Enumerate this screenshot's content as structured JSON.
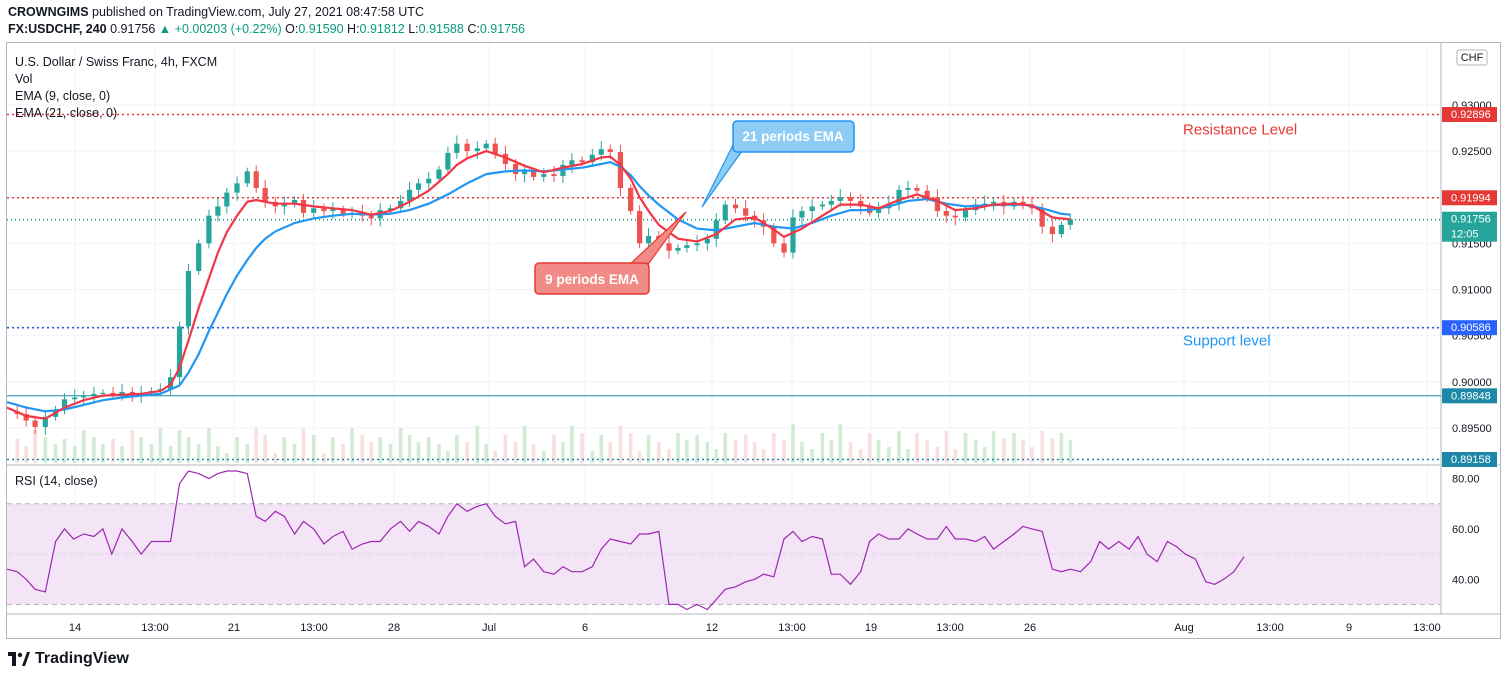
{
  "header": {
    "publisher": "CROWNGIMS",
    "published_text": "published on TradingView.com, July 27, 2021 08:47:58 UTC",
    "symbol": "FX:USDCHF, 240",
    "last": "0.91756",
    "change": "+0.00203 (+0.22%)",
    "o_label": "O:",
    "o": "0.91590",
    "h_label": "H:",
    "h": "0.91812",
    "l_label": "L:",
    "l": "0.91588",
    "c_label": "C:",
    "c": "0.91756"
  },
  "legend": {
    "title": "U.S. Dollar / Swiss Franc, 4h, FXCM",
    "vol": "Vol",
    "ema9": "EMA (9, close, 0)",
    "ema21": "EMA (21, close, 0)"
  },
  "rsi_label": "RSI (14, close)",
  "currency_badge": "CHF",
  "current_time_left": "12:05",
  "annotations": {
    "resistance": "Resistance Level",
    "support": "Support level",
    "ema21": "21 periods EMA",
    "ema9": "9 periods EMA"
  },
  "brand": "TradingView",
  "colors": {
    "up": "#26a69a",
    "down": "#ef5350",
    "ema9": "#f23645",
    "ema21": "#2196f3",
    "rsi": "#9c27b0",
    "rsi_band": "#f3e5f5",
    "resistance": "#e53935",
    "support": "#1e5bd6",
    "hline": "#1e88a8",
    "accent_teal": "#089981"
  },
  "chart_data": {
    "type": "candlestick",
    "y_ticks": [
      "0.93000",
      "0.92500",
      "0.92000",
      "0.91500",
      "0.91000",
      "0.90500",
      "0.90000",
      "0.89500"
    ],
    "y_tick_values": [
      0.93,
      0.925,
      0.92,
      0.915,
      0.91,
      0.905,
      0.9,
      0.895
    ],
    "y_range": [
      0.8912,
      0.9366
    ],
    "x_ticks": [
      "14",
      "13:00",
      "21",
      "13:00",
      "28",
      "Jul",
      "6",
      "12",
      "13:00",
      "19",
      "13:00",
      "26",
      "Aug",
      "13:00",
      "9",
      "13:00"
    ],
    "levels": [
      {
        "name": "resistance-top",
        "value": 0.92896,
        "label": "0.92896",
        "style": "dotted",
        "color": "#e53935"
      },
      {
        "name": "resistance",
        "value": 0.91994,
        "label": "0.91994",
        "style": "dotted",
        "color": "#e53935"
      },
      {
        "name": "current",
        "value": 0.91756,
        "label": "0.91756",
        "style": "dotted",
        "color": "#089981"
      },
      {
        "name": "support",
        "value": 0.90586,
        "label": "0.90586",
        "style": "dotted",
        "color": "#1e5bd6"
      },
      {
        "name": "hline",
        "value": 0.89848,
        "label": "0.89848",
        "style": "solid",
        "color": "#1e88a8"
      },
      {
        "name": "lower",
        "value": 0.89158,
        "label": "0.89158",
        "style": "dotted",
        "color": "#1e88a8"
      }
    ],
    "close_path": [
      [
        0,
        0.8968
      ],
      [
        8,
        0.8965
      ],
      [
        15,
        0.8958
      ],
      [
        22,
        0.8951
      ],
      [
        30,
        0.8962
      ],
      [
        38,
        0.897
      ],
      [
        45,
        0.8981
      ],
      [
        53,
        0.8983
      ],
      [
        60,
        0.8985
      ],
      [
        68,
        0.8987
      ],
      [
        75,
        0.8988
      ],
      [
        83,
        0.8986
      ],
      [
        90,
        0.8989
      ],
      [
        98,
        0.8986
      ],
      [
        105,
        0.8988
      ],
      [
        113,
        0.899
      ],
      [
        120,
        0.8992
      ],
      [
        128,
        0.9005
      ],
      [
        135,
        0.906
      ],
      [
        142,
        0.912
      ],
      [
        150,
        0.915
      ],
      [
        158,
        0.918
      ],
      [
        165,
        0.919
      ],
      [
        172,
        0.9205
      ],
      [
        180,
        0.9215
      ],
      [
        188,
        0.9228
      ],
      [
        195,
        0.921
      ],
      [
        202,
        0.9195
      ],
      [
        210,
        0.919
      ],
      [
        217,
        0.9193
      ],
      [
        225,
        0.9197
      ],
      [
        232,
        0.9183
      ],
      [
        240,
        0.9188
      ],
      [
        248,
        0.9185
      ],
      [
        255,
        0.9187
      ],
      [
        263,
        0.9182
      ],
      [
        270,
        0.9183
      ],
      [
        278,
        0.918
      ],
      [
        285,
        0.9177
      ],
      [
        292,
        0.9186
      ],
      [
        300,
        0.9188
      ],
      [
        308,
        0.9196
      ],
      [
        315,
        0.9208
      ],
      [
        322,
        0.9215
      ],
      [
        330,
        0.922
      ],
      [
        338,
        0.923
      ],
      [
        345,
        0.9248
      ],
      [
        352,
        0.9258
      ],
      [
        360,
        0.925
      ],
      [
        368,
        0.9253
      ],
      [
        375,
        0.9258
      ],
      [
        382,
        0.9247
      ],
      [
        390,
        0.9236
      ],
      [
        398,
        0.9225
      ],
      [
        405,
        0.9228
      ],
      [
        412,
        0.9222
      ],
      [
        420,
        0.9225
      ],
      [
        428,
        0.9223
      ],
      [
        435,
        0.9235
      ],
      [
        442,
        0.924
      ],
      [
        450,
        0.9238
      ],
      [
        458,
        0.9246
      ],
      [
        465,
        0.9252
      ],
      [
        472,
        0.9249
      ],
      [
        480,
        0.921
      ],
      [
        488,
        0.9185
      ],
      [
        495,
        0.915
      ],
      [
        502,
        0.9158
      ],
      [
        510,
        0.915
      ],
      [
        518,
        0.9142
      ],
      [
        525,
        0.9145
      ],
      [
        532,
        0.9148
      ],
      [
        540,
        0.915
      ],
      [
        548,
        0.9155
      ],
      [
        555,
        0.9175
      ],
      [
        562,
        0.9192
      ],
      [
        570,
        0.9188
      ],
      [
        578,
        0.918
      ],
      [
        585,
        0.9175
      ],
      [
        592,
        0.9168
      ],
      [
        600,
        0.915
      ],
      [
        608,
        0.914
      ],
      [
        615,
        0.9178
      ],
      [
        622,
        0.9185
      ],
      [
        630,
        0.919
      ],
      [
        638,
        0.9192
      ],
      [
        645,
        0.9196
      ],
      [
        652,
        0.92
      ],
      [
        660,
        0.9196
      ],
      [
        668,
        0.919
      ],
      [
        675,
        0.9183
      ],
      [
        682,
        0.9188
      ],
      [
        690,
        0.9193
      ],
      [
        698,
        0.9208
      ],
      [
        705,
        0.921
      ],
      [
        712,
        0.9207
      ],
      [
        720,
        0.92
      ],
      [
        728,
        0.9185
      ],
      [
        735,
        0.918
      ],
      [
        742,
        0.9178
      ],
      [
        750,
        0.9186
      ],
      [
        758,
        0.9192
      ],
      [
        765,
        0.9193
      ],
      [
        772,
        0.9195
      ],
      [
        780,
        0.919
      ],
      [
        788,
        0.9195
      ],
      [
        795,
        0.9192
      ],
      [
        802,
        0.9188
      ],
      [
        810,
        0.9168
      ],
      [
        818,
        0.916
      ],
      [
        825,
        0.917
      ],
      [
        832,
        0.9176
      ]
    ],
    "ema9_path": [
      [
        0,
        0.8972
      ],
      [
        15,
        0.8963
      ],
      [
        30,
        0.896
      ],
      [
        45,
        0.8972
      ],
      [
        60,
        0.898
      ],
      [
        75,
        0.8985
      ],
      [
        90,
        0.8986
      ],
      [
        105,
        0.8987
      ],
      [
        120,
        0.899
      ],
      [
        128,
        0.8997
      ],
      [
        135,
        0.9015
      ],
      [
        142,
        0.9045
      ],
      [
        150,
        0.908
      ],
      [
        158,
        0.9112
      ],
      [
        165,
        0.914
      ],
      [
        172,
        0.9162
      ],
      [
        180,
        0.918
      ],
      [
        188,
        0.9195
      ],
      [
        195,
        0.9197
      ],
      [
        202,
        0.9195
      ],
      [
        210,
        0.9193
      ],
      [
        225,
        0.9193
      ],
      [
        240,
        0.919
      ],
      [
        255,
        0.9188
      ],
      [
        270,
        0.9186
      ],
      [
        285,
        0.9181
      ],
      [
        300,
        0.9185
      ],
      [
        315,
        0.9195
      ],
      [
        330,
        0.9207
      ],
      [
        345,
        0.9225
      ],
      [
        352,
        0.9235
      ],
      [
        360,
        0.9242
      ],
      [
        375,
        0.925
      ],
      [
        390,
        0.9243
      ],
      [
        405,
        0.9234
      ],
      [
        420,
        0.9227
      ],
      [
        435,
        0.9232
      ],
      [
        450,
        0.9236
      ],
      [
        465,
        0.9243
      ],
      [
        472,
        0.9244
      ],
      [
        480,
        0.9235
      ],
      [
        488,
        0.922
      ],
      [
        495,
        0.92
      ],
      [
        502,
        0.9185
      ],
      [
        510,
        0.917
      ],
      [
        525,
        0.9155
      ],
      [
        540,
        0.9152
      ],
      [
        555,
        0.916
      ],
      [
        570,
        0.9176
      ],
      [
        585,
        0.9178
      ],
      [
        600,
        0.9165
      ],
      [
        608,
        0.9157
      ],
      [
        622,
        0.9166
      ],
      [
        638,
        0.918
      ],
      [
        652,
        0.9192
      ],
      [
        668,
        0.9192
      ],
      [
        682,
        0.9188
      ],
      [
        698,
        0.9197
      ],
      [
        712,
        0.9203
      ],
      [
        728,
        0.9196
      ],
      [
        742,
        0.9186
      ],
      [
        758,
        0.9188
      ],
      [
        772,
        0.9192
      ],
      [
        788,
        0.9193
      ],
      [
        802,
        0.9191
      ],
      [
        818,
        0.9178
      ],
      [
        832,
        0.9176
      ]
    ],
    "ema21_path": [
      [
        0,
        0.8978
      ],
      [
        15,
        0.8972
      ],
      [
        30,
        0.8968
      ],
      [
        45,
        0.897
      ],
      [
        60,
        0.8975
      ],
      [
        75,
        0.898
      ],
      [
        90,
        0.8983
      ],
      [
        105,
        0.8985
      ],
      [
        120,
        0.8987
      ],
      [
        135,
        0.8996
      ],
      [
        142,
        0.901
      ],
      [
        150,
        0.903
      ],
      [
        158,
        0.9055
      ],
      [
        165,
        0.9075
      ],
      [
        172,
        0.9095
      ],
      [
        180,
        0.9115
      ],
      [
        188,
        0.9132
      ],
      [
        195,
        0.9145
      ],
      [
        202,
        0.9155
      ],
      [
        210,
        0.9163
      ],
      [
        225,
        0.9172
      ],
      [
        240,
        0.9177
      ],
      [
        255,
        0.918
      ],
      [
        270,
        0.9182
      ],
      [
        285,
        0.9181
      ],
      [
        300,
        0.9182
      ],
      [
        315,
        0.9186
      ],
      [
        330,
        0.9193
      ],
      [
        345,
        0.9203
      ],
      [
        360,
        0.9215
      ],
      [
        375,
        0.9225
      ],
      [
        390,
        0.9228
      ],
      [
        405,
        0.9229
      ],
      [
        420,
        0.9228
      ],
      [
        435,
        0.923
      ],
      [
        450,
        0.9232
      ],
      [
        465,
        0.9236
      ],
      [
        472,
        0.9238
      ],
      [
        480,
        0.9233
      ],
      [
        488,
        0.9224
      ],
      [
        495,
        0.9212
      ],
      [
        502,
        0.9202
      ],
      [
        510,
        0.9192
      ],
      [
        525,
        0.9176
      ],
      [
        540,
        0.9166
      ],
      [
        555,
        0.9164
      ],
      [
        570,
        0.9168
      ],
      [
        585,
        0.9172
      ],
      [
        600,
        0.9168
      ],
      [
        615,
        0.9166
      ],
      [
        630,
        0.9172
      ],
      [
        645,
        0.918
      ],
      [
        660,
        0.9186
      ],
      [
        675,
        0.9186
      ],
      [
        690,
        0.919
      ],
      [
        705,
        0.9196
      ],
      [
        720,
        0.9198
      ],
      [
        735,
        0.9193
      ],
      [
        750,
        0.919
      ],
      [
        765,
        0.9191
      ],
      [
        780,
        0.9192
      ],
      [
        795,
        0.9192
      ],
      [
        810,
        0.9188
      ],
      [
        825,
        0.9182
      ],
      [
        832,
        0.9181
      ]
    ],
    "rsi_ticks": [
      "80.00",
      "60.00",
      "40.00"
    ],
    "rsi_tick_values": [
      80,
      60,
      40
    ],
    "rsi_range": [
      27,
      85
    ],
    "rsi_band": [
      30,
      70
    ],
    "rsi_path": [
      [
        0,
        44
      ],
      [
        8,
        43
      ],
      [
        15,
        40
      ],
      [
        22,
        36
      ],
      [
        30,
        35
      ],
      [
        38,
        55
      ],
      [
        45,
        60
      ],
      [
        52,
        56
      ],
      [
        60,
        58
      ],
      [
        68,
        57
      ],
      [
        75,
        60
      ],
      [
        82,
        50
      ],
      [
        90,
        60
      ],
      [
        98,
        55
      ],
      [
        105,
        50
      ],
      [
        113,
        55
      ],
      [
        120,
        55
      ],
      [
        128,
        55
      ],
      [
        135,
        78
      ],
      [
        142,
        83
      ],
      [
        150,
        82
      ],
      [
        158,
        80
      ],
      [
        165,
        82
      ],
      [
        172,
        83
      ],
      [
        180,
        83
      ],
      [
        188,
        82
      ],
      [
        195,
        65
      ],
      [
        202,
        63
      ],
      [
        210,
        67
      ],
      [
        217,
        65
      ],
      [
        225,
        58
      ],
      [
        232,
        63
      ],
      [
        240,
        60
      ],
      [
        248,
        54
      ],
      [
        255,
        57
      ],
      [
        263,
        59
      ],
      [
        270,
        52
      ],
      [
        278,
        54
      ],
      [
        285,
        55
      ],
      [
        292,
        55
      ],
      [
        300,
        60
      ],
      [
        308,
        63
      ],
      [
        315,
        59
      ],
      [
        322,
        63
      ],
      [
        330,
        61
      ],
      [
        338,
        58
      ],
      [
        345,
        65
      ],
      [
        352,
        70
      ],
      [
        360,
        67
      ],
      [
        368,
        69
      ],
      [
        375,
        70
      ],
      [
        382,
        65
      ],
      [
        390,
        62
      ],
      [
        398,
        63
      ],
      [
        405,
        45
      ],
      [
        412,
        48
      ],
      [
        420,
        43
      ],
      [
        428,
        42
      ],
      [
        435,
        45
      ],
      [
        442,
        43
      ],
      [
        450,
        43
      ],
      [
        458,
        45
      ],
      [
        465,
        52
      ],
      [
        472,
        56
      ],
      [
        480,
        55
      ],
      [
        488,
        54
      ],
      [
        495,
        58
      ],
      [
        502,
        58
      ],
      [
        510,
        59
      ],
      [
        518,
        30
      ],
      [
        525,
        30
      ],
      [
        532,
        28
      ],
      [
        540,
        30
      ],
      [
        548,
        28
      ],
      [
        555,
        32
      ],
      [
        562,
        36
      ],
      [
        570,
        37
      ],
      [
        578,
        39
      ],
      [
        585,
        40
      ],
      [
        592,
        42
      ],
      [
        600,
        41
      ],
      [
        608,
        56
      ],
      [
        615,
        59
      ],
      [
        622,
        55
      ],
      [
        630,
        57
      ],
      [
        638,
        56
      ],
      [
        645,
        42
      ],
      [
        652,
        42
      ],
      [
        660,
        38
      ],
      [
        668,
        43
      ],
      [
        675,
        55
      ],
      [
        682,
        58
      ],
      [
        690,
        56
      ],
      [
        698,
        56
      ],
      [
        705,
        60
      ],
      [
        712,
        58
      ],
      [
        720,
        56
      ],
      [
        728,
        56
      ],
      [
        735,
        61
      ],
      [
        742,
        56
      ],
      [
        750,
        56
      ],
      [
        758,
        55
      ],
      [
        765,
        57
      ],
      [
        772,
        52
      ],
      [
        780,
        55
      ],
      [
        788,
        58
      ],
      [
        795,
        61
      ],
      [
        802,
        60
      ],
      [
        810,
        59
      ],
      [
        818,
        44
      ],
      [
        825,
        43
      ],
      [
        832,
        44
      ],
      [
        840,
        43
      ],
      [
        848,
        47
      ],
      [
        855,
        55
      ],
      [
        862,
        52
      ],
      [
        870,
        55
      ],
      [
        878,
        52
      ],
      [
        885,
        57
      ],
      [
        892,
        50
      ],
      [
        900,
        47
      ],
      [
        908,
        55
      ],
      [
        915,
        53
      ],
      [
        922,
        50
      ],
      [
        930,
        48
      ],
      [
        938,
        39
      ],
      [
        945,
        38
      ],
      [
        952,
        40
      ],
      [
        960,
        43
      ],
      [
        968,
        49
      ]
    ]
  }
}
